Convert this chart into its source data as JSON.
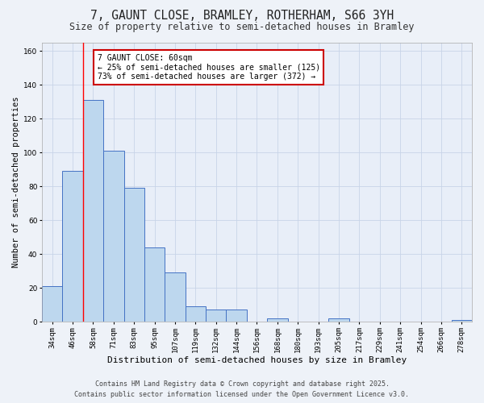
{
  "title_line1": "7, GAUNT CLOSE, BRAMLEY, ROTHERHAM, S66 3YH",
  "title_line2": "Size of property relative to semi-detached houses in Bramley",
  "xlabel": "Distribution of semi-detached houses by size in Bramley",
  "ylabel": "Number of semi-detached properties",
  "categories": [
    "34sqm",
    "46sqm",
    "58sqm",
    "71sqm",
    "83sqm",
    "95sqm",
    "107sqm",
    "119sqm",
    "132sqm",
    "144sqm",
    "156sqm",
    "168sqm",
    "180sqm",
    "193sqm",
    "205sqm",
    "217sqm",
    "229sqm",
    "241sqm",
    "254sqm",
    "266sqm",
    "278sqm"
  ],
  "values": [
    21,
    89,
    131,
    101,
    79,
    44,
    29,
    9,
    7,
    7,
    0,
    2,
    0,
    0,
    2,
    0,
    0,
    0,
    0,
    0,
    1
  ],
  "bar_color": "#bdd7ee",
  "bar_edge_color": "#4472c4",
  "red_line_x": 1.5,
  "annotation_text": "7 GAUNT CLOSE: 60sqm\n← 25% of semi-detached houses are smaller (125)\n73% of semi-detached houses are larger (372) →",
  "annotation_box_color": "#ffffff",
  "annotation_box_edge": "#cc0000",
  "ylim": [
    0,
    165
  ],
  "yticks": [
    0,
    20,
    40,
    60,
    80,
    100,
    120,
    140,
    160
  ],
  "grid_color": "#c8d4e8",
  "background_color": "#e8eef8",
  "fig_background_color": "#eef2f8",
  "footer_line1": "Contains HM Land Registry data © Crown copyright and database right 2025.",
  "footer_line2": "Contains public sector information licensed under the Open Government Licence v3.0.",
  "title_fontsize": 10.5,
  "subtitle_fontsize": 8.5,
  "axis_label_fontsize": 7.5,
  "tick_fontsize": 6.5,
  "annotation_fontsize": 7,
  "footer_fontsize": 6
}
